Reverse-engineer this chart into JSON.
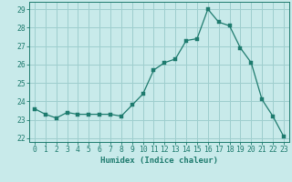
{
  "x": [
    0,
    1,
    2,
    3,
    4,
    5,
    6,
    7,
    8,
    9,
    10,
    11,
    12,
    13,
    14,
    15,
    16,
    17,
    18,
    19,
    20,
    21,
    22,
    23
  ],
  "y": [
    23.6,
    23.3,
    23.1,
    23.4,
    23.3,
    23.3,
    23.3,
    23.3,
    23.2,
    23.8,
    24.4,
    25.7,
    26.1,
    26.3,
    27.3,
    27.4,
    29.0,
    28.3,
    28.1,
    26.9,
    26.1,
    24.1,
    23.2,
    22.1
  ],
  "line_color": "#1e7b6e",
  "marker_color": "#1e7b6e",
  "bg_color": "#c8eaea",
  "grid_color": "#9ecece",
  "xlabel": "Humidex (Indice chaleur)",
  "ylabel": "",
  "ylim": [
    21.8,
    29.4
  ],
  "yticks": [
    22,
    23,
    24,
    25,
    26,
    27,
    28,
    29
  ],
  "xlim": [
    -0.5,
    23.5
  ],
  "xticks": [
    0,
    1,
    2,
    3,
    4,
    5,
    6,
    7,
    8,
    9,
    10,
    11,
    12,
    13,
    14,
    15,
    16,
    17,
    18,
    19,
    20,
    21,
    22,
    23
  ],
  "tick_color": "#1e7b6e",
  "axis_color": "#1e7b6e",
  "label_fontsize": 6.5,
  "tick_fontsize": 5.8,
  "marker_size": 2.2,
  "line_width": 0.9
}
